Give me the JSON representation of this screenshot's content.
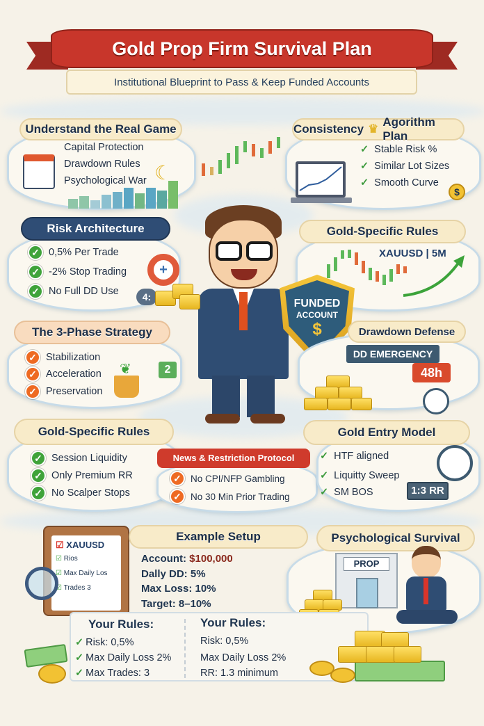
{
  "header": {
    "title": "Gold Prop Firm Survival Plan",
    "subtitle": "Institutional Blueprint to Pass & Keep Funded Accounts",
    "ribbon_color": "#c8362b"
  },
  "sections": {
    "real_game": {
      "title": "Understand the Real Game",
      "items": [
        "Capital Protection",
        "Drawdown Rules",
        "Psychological War"
      ]
    },
    "consistency": {
      "title": "Consistency",
      "title_rest": "Agorithm Plan",
      "items": [
        "Stable Risk %",
        "Similar Lot Sizes",
        "Smooth Curve"
      ]
    },
    "risk": {
      "title": "Risk Architecture",
      "items": [
        "0,5% Per Trade",
        "-2% Stop Trading",
        "No Full DD Use"
      ],
      "badge": "4:"
    },
    "gold_rules_top": {
      "title": "Gold-Specific Rules",
      "chart_label": "XAUUSD | 5M"
    },
    "shield": {
      "line1": "FUNDED",
      "line2": "ACCOUNT",
      "symbol": "$"
    },
    "three_phase": {
      "title": "The 3-Phase Strategy",
      "items": [
        "Stabilization",
        "Acceleration",
        "Preservation"
      ],
      "tag": "2"
    },
    "drawdown": {
      "title": "Drawdown Defense",
      "emergency": "DD EMERGENCY",
      "timer": "48h"
    },
    "gold_rules_bottom": {
      "title": "Gold-Specific Rules",
      "items": [
        "Session  Liquidity",
        "Only Premium RR",
        "No Scalper Stops"
      ]
    },
    "news": {
      "title": "News & Restriction Protocol",
      "items": [
        "No CPI/NFP Gambling",
        "No 30 Min Prior Trading"
      ]
    },
    "entry": {
      "title": "Gold Entry Model",
      "items": [
        "HTF aligned",
        "Liquitty Sweep",
        "SM BOS"
      ],
      "rr": "1:3 RR"
    },
    "clipboard": {
      "items": [
        "XAUUSD",
        "Rios",
        "Max Daily Los",
        "Trades 3"
      ]
    },
    "example": {
      "title": "Example Setup",
      "account_label": "Account:",
      "account_value": "$100,000",
      "lines": [
        "Dally DD: 5%",
        "Max Loss: 10%",
        "Target: 8–10%"
      ]
    },
    "psych": {
      "title": "Psychological Survival",
      "sign": "PROP"
    },
    "rules_left": {
      "title": "Your Rules:",
      "items": [
        "Risk: 0,5%",
        "Max Daily Loss 2%",
        "Max Trades: 3"
      ]
    },
    "rules_right": {
      "title": "Your Rules:",
      "items": [
        "Risk: 0,5%",
        "Max Daily Loss 2%",
        "RR: 1.3 minimum"
      ]
    }
  }
}
